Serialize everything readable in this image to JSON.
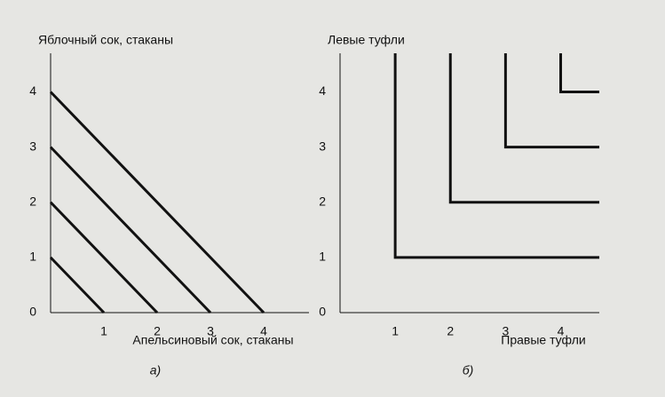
{
  "chart_data": [
    {
      "type": "line",
      "caption": "а)",
      "x_label": "Апельсиновый сок, стаканы",
      "y_label": "Яблочный сок, стаканы",
      "xlim": [
        0,
        4.85
      ],
      "ylim": [
        0,
        4.7
      ],
      "xticks": [
        1,
        2,
        3,
        4
      ],
      "yticks": [
        0,
        1,
        2,
        3,
        4
      ],
      "series": [
        {
          "color": "#111111",
          "x": [
            0,
            1
          ],
          "values": [
            1,
            0
          ]
        },
        {
          "color": "#111111",
          "x": [
            0,
            2
          ],
          "values": [
            2,
            0
          ]
        },
        {
          "color": "#111111",
          "x": [
            0,
            3
          ],
          "values": [
            3,
            0
          ]
        },
        {
          "color": "#111111",
          "x": [
            0,
            4
          ],
          "values": [
            4,
            0
          ]
        }
      ]
    },
    {
      "type": "line",
      "caption": "б)",
      "x_label": "Правые туфли",
      "y_label": "Левые туфли",
      "xlim": [
        0,
        4.7
      ],
      "ylim": [
        0,
        4.7
      ],
      "xticks": [
        1,
        2,
        3,
        4
      ],
      "yticks": [
        0,
        1,
        2,
        3,
        4
      ],
      "series": [
        {
          "color": "#111111",
          "x": [
            1,
            1,
            4.7
          ],
          "values": [
            4.7,
            1,
            1
          ]
        },
        {
          "color": "#111111",
          "x": [
            2,
            2,
            4.7
          ],
          "values": [
            4.7,
            2,
            2
          ]
        },
        {
          "color": "#111111",
          "x": [
            3,
            3,
            4.7
          ],
          "values": [
            4.7,
            3,
            3
          ]
        },
        {
          "color": "#111111",
          "x": [
            4,
            4,
            4.7
          ],
          "values": [
            4.7,
            4,
            4
          ]
        }
      ]
    }
  ]
}
